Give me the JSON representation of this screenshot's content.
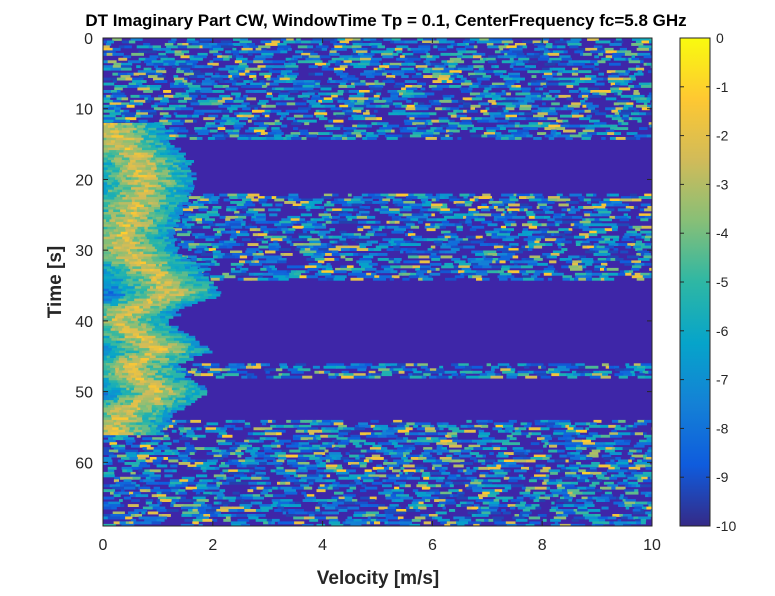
{
  "chart_data": {
    "type": "heatmap",
    "title": "DT Imaginary Part CW, WindowTime Tp = 0.1, CenterFrequency fc=5.8 GHz",
    "xlabel": "Velocity [m/s]",
    "ylabel": "Time [s]",
    "xlim": [
      0,
      10
    ],
    "ylim": [
      0,
      69
    ],
    "y_direction": "reverse",
    "x_ticks": [
      "0",
      "2",
      "4",
      "6",
      "8",
      "10"
    ],
    "y_ticks": [
      "0",
      "10",
      "20",
      "30",
      "40",
      "50",
      "60"
    ],
    "colorbar": {
      "colormap": "parula",
      "clim": [
        -10,
        0
      ],
      "ticks": [
        "0",
        "-1",
        "-2",
        "-3",
        "-4",
        "-5",
        "-6",
        "-7",
        "-8",
        "-9",
        "-10"
      ]
    },
    "background_value": -10,
    "quiet_time_intervals_s": [
      [
        14,
        22
      ],
      [
        34,
        46
      ],
      [
        48,
        54
      ]
    ],
    "active_time_intervals_s": [
      [
        0,
        14
      ],
      [
        22,
        34
      ],
      [
        46,
        48
      ],
      [
        54,
        69
      ]
    ],
    "ridge_points": [
      {
        "t": 12,
        "v": 0.1
      },
      {
        "t": 15,
        "v": 0.3
      },
      {
        "t": 17,
        "v": 0.6
      },
      {
        "t": 20,
        "v": 0.7
      },
      {
        "t": 24,
        "v": 0.5
      },
      {
        "t": 26,
        "v": 0.4
      },
      {
        "t": 28,
        "v": 0.3
      },
      {
        "t": 30,
        "v": 0.4
      },
      {
        "t": 32,
        "v": 0.7
      },
      {
        "t": 34,
        "v": 1.0
      },
      {
        "t": 36,
        "v": 1.2
      },
      {
        "t": 38,
        "v": 0.5
      },
      {
        "t": 40,
        "v": 0.2
      },
      {
        "t": 42,
        "v": 0.6
      },
      {
        "t": 44,
        "v": 1.0
      },
      {
        "t": 46,
        "v": 0.4
      },
      {
        "t": 48,
        "v": 0.6
      },
      {
        "t": 50,
        "v": 1.0
      },
      {
        "t": 52,
        "v": 0.5
      },
      {
        "t": 54,
        "v": 0.2
      },
      {
        "t": 56,
        "v": 0.1
      }
    ],
    "colors": {
      "background": "#3e26a8",
      "parula_stops": [
        "#352a87",
        "#0f5cdd",
        "#1481d6",
        "#06a4ca",
        "#2eb7a4",
        "#87bf77",
        "#d1bb59",
        "#fec832",
        "#f9fb0e"
      ]
    }
  }
}
